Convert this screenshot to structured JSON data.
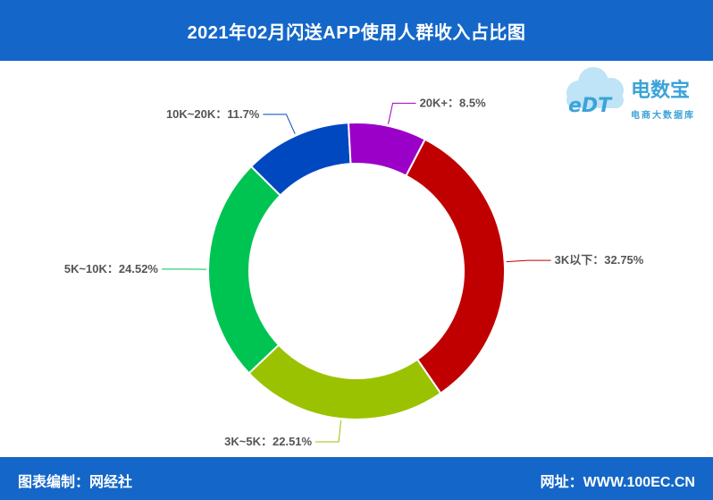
{
  "header": {
    "title": "2021年02月闪送APP使用人群收入占比图"
  },
  "logo": {
    "mark": "eDT",
    "name": "电数宝",
    "subtitle": "电商大数据库"
  },
  "footer": {
    "left": "图表编制：网经社",
    "right": "网址：WWW.100EC.CN"
  },
  "colors": {
    "band": "#1467c8",
    "s3k": "#c00000",
    "s3k5k": "#9bc200",
    "s5k10k": "#00c452",
    "s10k20k": "#0048c0",
    "s20k": "#9b00c8"
  },
  "chart_data": {
    "type": "pie",
    "donut": true,
    "title": "2021年02月闪送APP使用人群收入占比图",
    "slices": [
      {
        "name": "3K以下",
        "value": 32.75,
        "label": "3K以下：32.75%",
        "color": "#c00000"
      },
      {
        "name": "3K~5K",
        "value": 22.51,
        "label": "3K~5K：22.51%",
        "color": "#9bc200"
      },
      {
        "name": "5K~10K",
        "value": 24.52,
        "label": "5K~10K：24.52%",
        "color": "#00c452"
      },
      {
        "name": "10K~20K",
        "value": 11.7,
        "label": "10K~20K：11.7%",
        "color": "#0048c0"
      },
      {
        "name": "20K+",
        "value": 8.5,
        "label": "20K+：8.5%",
        "color": "#9b00c8"
      }
    ]
  }
}
